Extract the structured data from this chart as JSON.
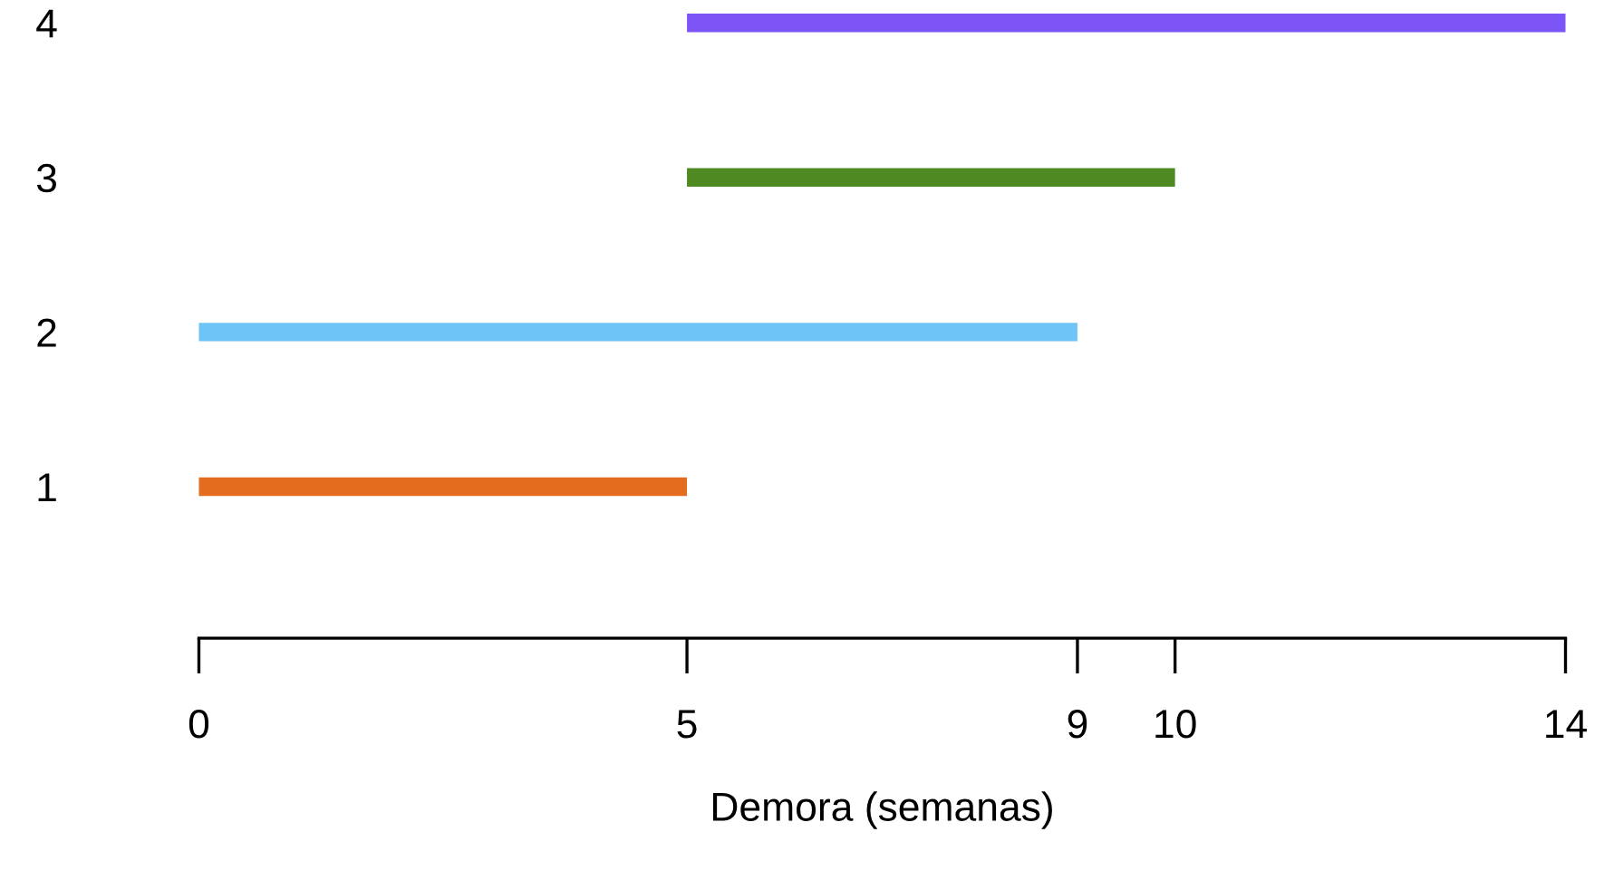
{
  "chart_data": {
    "type": "bar",
    "orientation": "horizontal",
    "categories": [
      "4",
      "3",
      "2",
      "1"
    ],
    "base": [
      5,
      5,
      0,
      0
    ],
    "values": [
      9,
      5,
      9,
      5
    ],
    "colors": [
      "#7d55f7",
      "#4e8a21",
      "#6ec4f7",
      "#e36c1e"
    ],
    "xlim": [
      0,
      14
    ],
    "xticks": [
      0,
      5,
      9,
      10,
      14
    ],
    "xlabel": "Demora (semanas)",
    "grid": false,
    "legend": false
  }
}
